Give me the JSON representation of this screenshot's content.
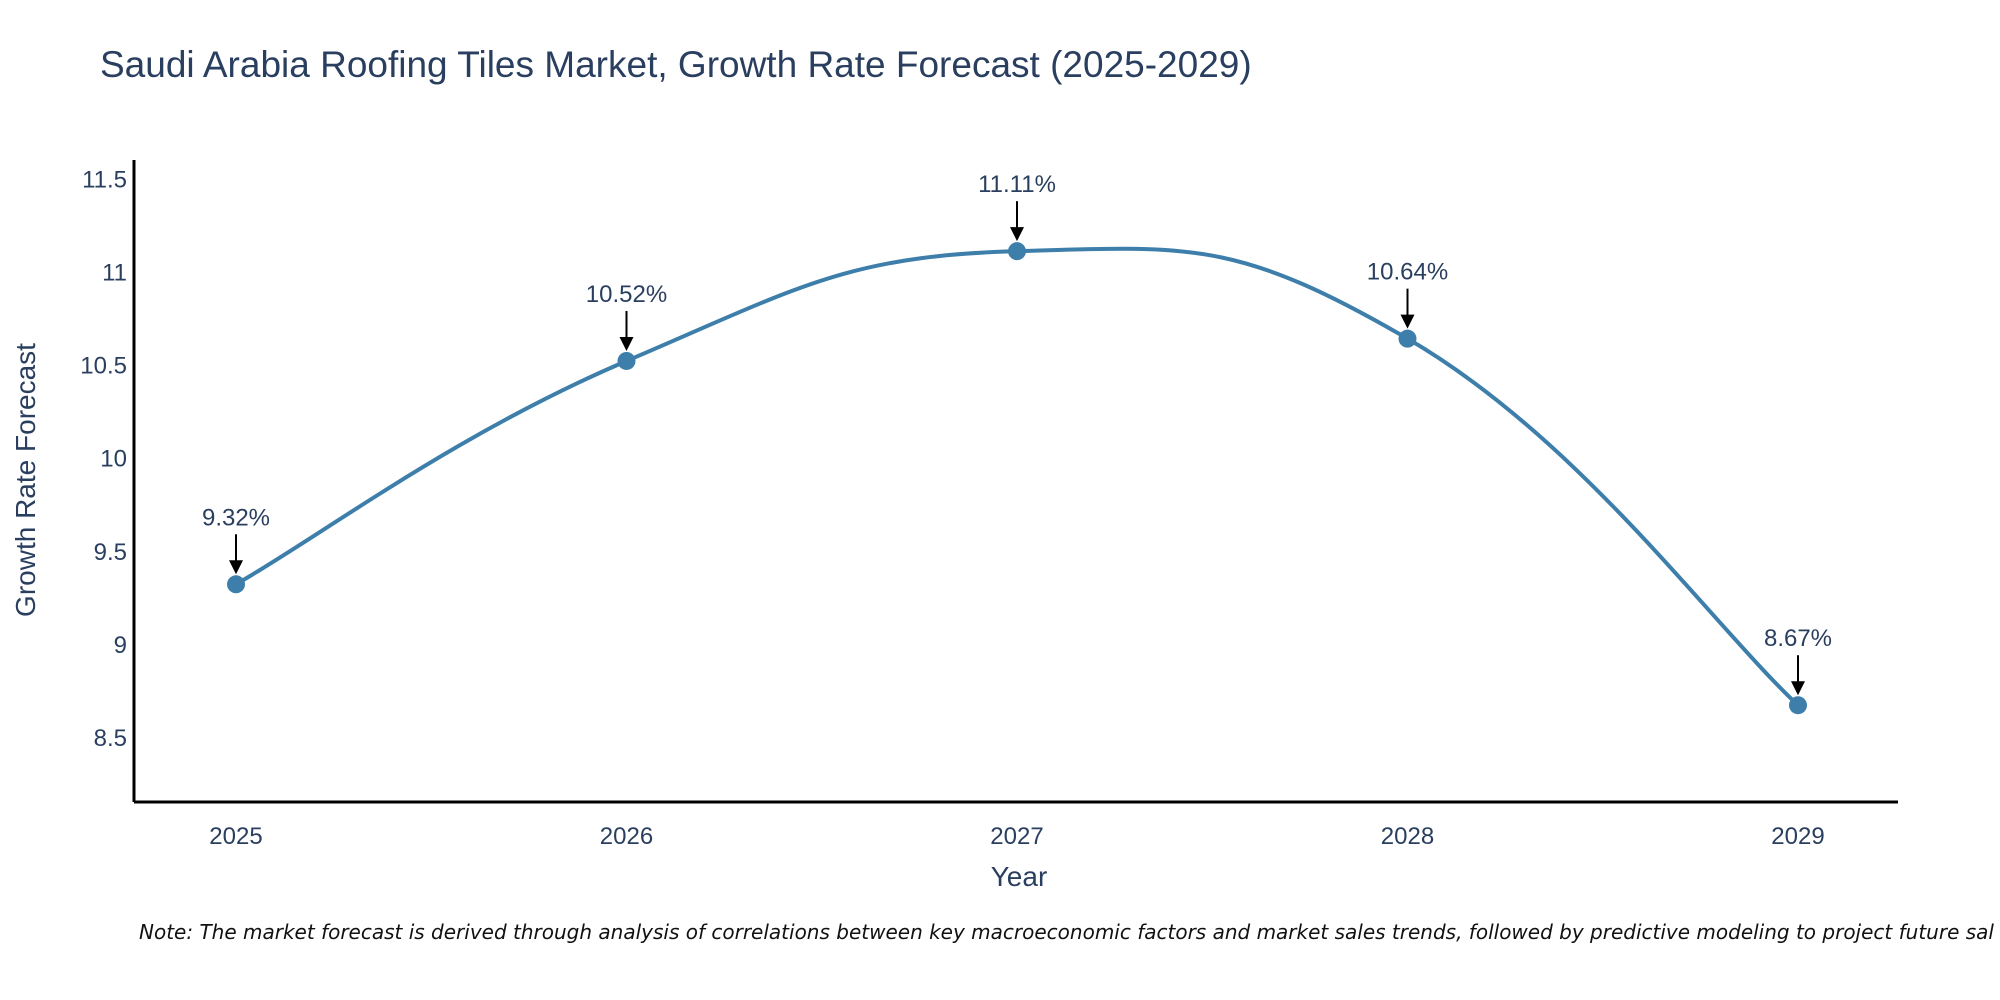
{
  "chart_data": {
    "type": "line",
    "title": "Saudi Arabia Roofing Tiles Market, Growth Rate Forecast (2025-2029)",
    "xlabel": "Year",
    "ylabel": "Growth Rate Forecast",
    "categories": [
      "2025",
      "2026",
      "2027",
      "2028",
      "2029"
    ],
    "values": [
      9.32,
      10.52,
      11.11,
      10.64,
      8.67
    ],
    "data_labels": [
      "9.32%",
      "10.52%",
      "11.11%",
      "10.64%",
      "8.67%"
    ],
    "ylim": [
      8.15,
      11.6
    ],
    "yticks": [
      8.5,
      9,
      9.5,
      10,
      10.5,
      11,
      11.5
    ],
    "ytick_labels": [
      "8.5",
      "9",
      "9.5",
      "10",
      "10.5",
      "11",
      "11.5"
    ],
    "line_shape": "spline",
    "grid": false,
    "line_color": "#3d7eab",
    "marker_color": "#3d7eab",
    "note": "Note: The market forecast is derived through analysis of correlations between key macroeconomic factors and market sales trends, followed by predictive modeling to project future sal"
  }
}
